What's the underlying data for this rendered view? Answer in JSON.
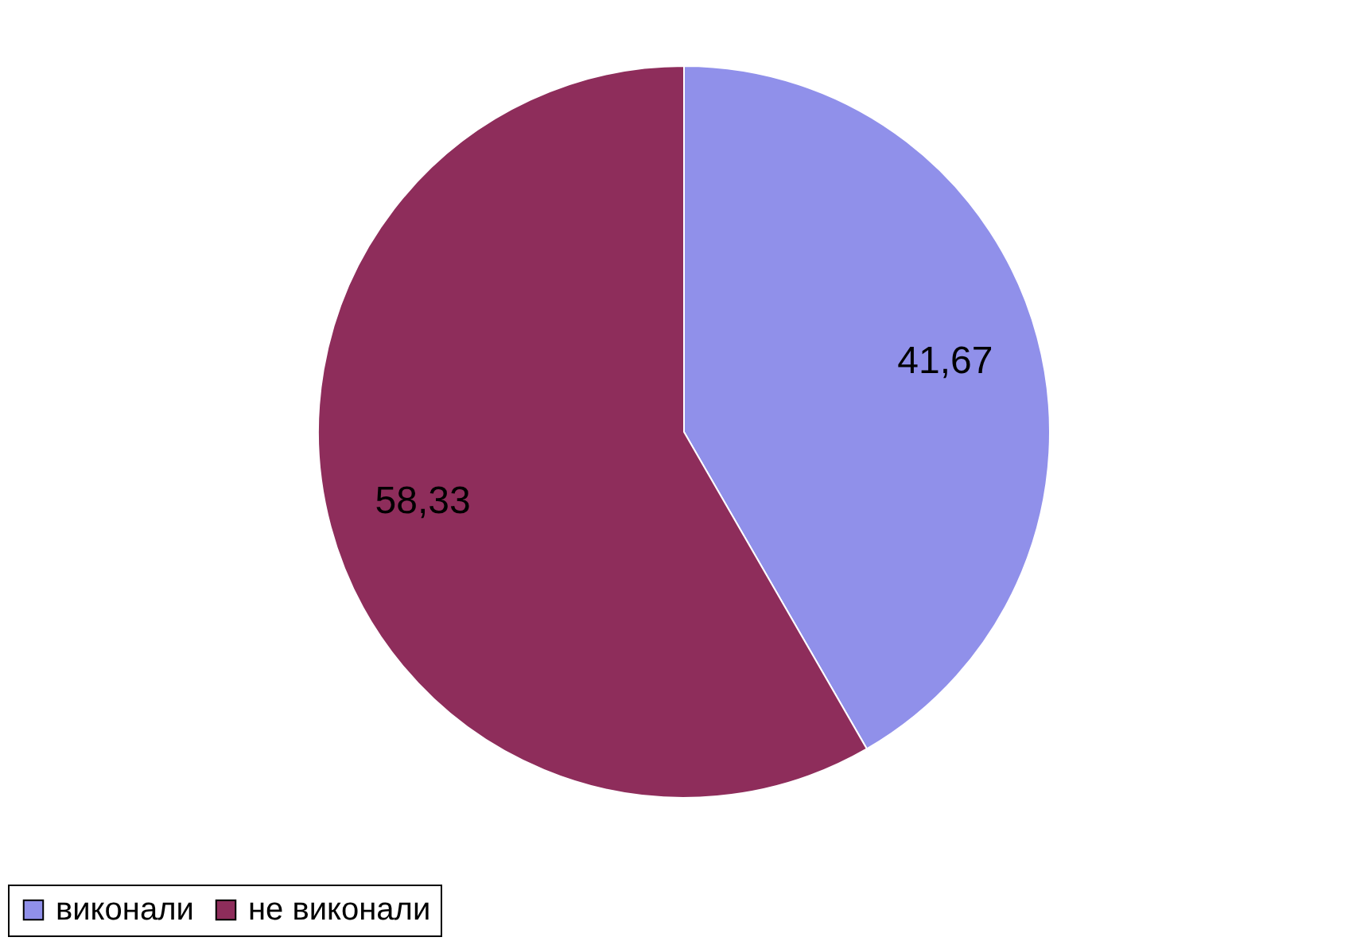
{
  "chart_data": {
    "type": "pie",
    "categories": [
      "виконали",
      "не виконали"
    ],
    "values": [
      41.67,
      58.33
    ],
    "value_labels": [
      "41,67",
      "58,33"
    ],
    "colors": [
      "#9090ea",
      "#8e2d5b"
    ],
    "legend": "bottom"
  }
}
